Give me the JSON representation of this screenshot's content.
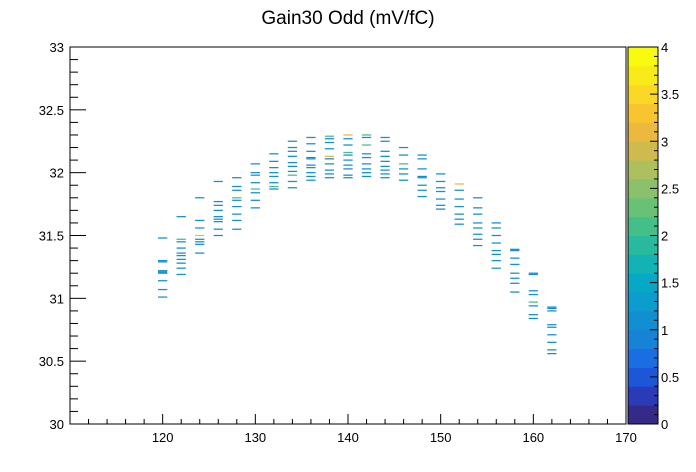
{
  "chart_data": {
    "type": "heatmap",
    "title": "Gain30 Odd (mV/fC)",
    "xlabel": "",
    "ylabel": "",
    "xlim": [
      110,
      170
    ],
    "ylim": [
      30,
      33
    ],
    "zlim": [
      0,
      4
    ],
    "x_ticks": [
      120,
      130,
      140,
      150,
      160,
      170
    ],
    "y_ticks": [
      30,
      30.5,
      31,
      31.5,
      32,
      32.5,
      33
    ],
    "z_ticks": [
      0,
      0.5,
      1,
      1.5,
      2,
      2.5,
      3,
      3.5,
      4
    ],
    "x_tick_labels": [
      "120",
      "130",
      "140",
      "150",
      "160",
      "170"
    ],
    "y_tick_labels": [
      "30",
      "30.5",
      "31",
      "31.5",
      "32",
      "32.5",
      "33"
    ],
    "z_tick_labels": [
      "0",
      "0.5",
      "1",
      "1.5",
      "2",
      "2.5",
      "3",
      "3.5",
      "4"
    ],
    "bin_width_x": 1,
    "bin_width_y": 0.01,
    "palette": [
      "#352a87",
      "#2a3bb8",
      "#1e56d8",
      "#1a6ee2",
      "#1783d6",
      "#128fd0",
      "#0b9dce",
      "#06a8c6",
      "#12b2b5",
      "#28b99f",
      "#44bf8a",
      "#67c275",
      "#8bc16a",
      "#aebf5d",
      "#cfba4d",
      "#eab93e",
      "#f8c530",
      "#fcd826",
      "#f9eb1a",
      "#f9fb0e"
    ],
    "cells": [
      [
        120,
        31.48,
        1
      ],
      [
        120,
        31.3,
        1
      ],
      [
        120,
        31.29,
        1
      ],
      [
        120,
        31.22,
        1
      ],
      [
        120,
        31.21,
        1
      ],
      [
        120,
        31.2,
        1
      ],
      [
        120,
        31.14,
        1
      ],
      [
        120,
        31.07,
        1
      ],
      [
        120,
        31.01,
        1
      ],
      [
        122,
        31.65,
        1
      ],
      [
        122,
        31.47,
        2
      ],
      [
        122,
        31.45,
        1
      ],
      [
        122,
        31.4,
        1
      ],
      [
        122,
        31.36,
        1
      ],
      [
        122,
        31.34,
        1
      ],
      [
        122,
        31.31,
        1
      ],
      [
        122,
        31.28,
        1
      ],
      [
        122,
        31.24,
        1
      ],
      [
        122,
        31.19,
        1
      ],
      [
        124,
        31.8,
        1
      ],
      [
        124,
        31.62,
        1
      ],
      [
        124,
        31.56,
        1
      ],
      [
        124,
        31.5,
        3
      ],
      [
        124,
        31.47,
        1
      ],
      [
        124,
        31.45,
        1
      ],
      [
        124,
        31.43,
        1
      ],
      [
        124,
        31.36,
        1
      ],
      [
        126,
        31.93,
        1
      ],
      [
        126,
        31.77,
        1
      ],
      [
        126,
        31.74,
        1
      ],
      [
        126,
        31.7,
        1
      ],
      [
        126,
        31.65,
        1
      ],
      [
        126,
        31.63,
        1
      ],
      [
        126,
        31.61,
        1
      ],
      [
        126,
        31.55,
        1
      ],
      [
        126,
        31.5,
        1
      ],
      [
        128,
        31.96,
        1
      ],
      [
        128,
        31.89,
        1
      ],
      [
        128,
        31.86,
        1
      ],
      [
        128,
        31.8,
        2
      ],
      [
        128,
        31.78,
        1
      ],
      [
        128,
        31.73,
        1
      ],
      [
        128,
        31.67,
        1
      ],
      [
        128,
        31.62,
        1
      ],
      [
        128,
        31.55,
        1
      ],
      [
        130,
        32.07,
        1
      ],
      [
        130,
        32.0,
        1
      ],
      [
        130,
        31.98,
        1
      ],
      [
        130,
        31.92,
        1
      ],
      [
        130,
        31.87,
        2
      ],
      [
        130,
        31.84,
        1
      ],
      [
        130,
        31.78,
        1
      ],
      [
        130,
        31.72,
        1
      ],
      [
        132,
        32.15,
        1
      ],
      [
        132,
        32.09,
        1
      ],
      [
        132,
        32.04,
        1
      ],
      [
        132,
        32.0,
        1
      ],
      [
        132,
        31.97,
        1
      ],
      [
        132,
        31.92,
        1
      ],
      [
        132,
        31.89,
        2
      ],
      [
        132,
        31.87,
        1
      ],
      [
        134,
        32.25,
        1
      ],
      [
        134,
        32.2,
        1
      ],
      [
        134,
        32.17,
        1
      ],
      [
        134,
        32.13,
        1
      ],
      [
        134,
        32.08,
        1
      ],
      [
        134,
        32.05,
        1
      ],
      [
        134,
        32.01,
        1
      ],
      [
        134,
        31.98,
        2
      ],
      [
        134,
        31.93,
        1
      ],
      [
        134,
        31.88,
        1
      ],
      [
        136,
        32.28,
        1
      ],
      [
        136,
        32.23,
        1
      ],
      [
        136,
        32.17,
        1
      ],
      [
        136,
        32.12,
        1
      ],
      [
        136,
        32.11,
        1
      ],
      [
        136,
        32.06,
        1
      ],
      [
        136,
        32.04,
        1
      ],
      [
        136,
        32.0,
        1
      ],
      [
        136,
        31.97,
        1
      ],
      [
        136,
        31.94,
        1
      ],
      [
        138,
        32.29,
        2
      ],
      [
        138,
        32.27,
        1
      ],
      [
        138,
        32.24,
        1
      ],
      [
        138,
        32.19,
        1
      ],
      [
        138,
        32.13,
        3
      ],
      [
        138,
        32.11,
        1
      ],
      [
        138,
        32.07,
        1
      ],
      [
        138,
        32.02,
        1
      ],
      [
        138,
        31.99,
        1
      ],
      [
        138,
        31.96,
        1
      ],
      [
        140,
        32.3,
        3
      ],
      [
        140,
        32.27,
        1
      ],
      [
        140,
        32.22,
        1
      ],
      [
        140,
        32.16,
        2
      ],
      [
        140,
        32.14,
        1
      ],
      [
        140,
        32.1,
        1
      ],
      [
        140,
        32.06,
        1
      ],
      [
        140,
        32.03,
        1
      ],
      [
        140,
        31.98,
        1
      ],
      [
        140,
        31.96,
        1
      ],
      [
        142,
        32.3,
        2
      ],
      [
        142,
        32.28,
        1
      ],
      [
        142,
        32.22,
        2
      ],
      [
        142,
        32.15,
        1
      ],
      [
        142,
        32.12,
        1
      ],
      [
        142,
        32.07,
        1
      ],
      [
        142,
        32.03,
        1
      ],
      [
        142,
        32.0,
        1
      ],
      [
        142,
        31.97,
        1
      ],
      [
        144,
        32.28,
        1
      ],
      [
        144,
        32.25,
        1
      ],
      [
        144,
        32.17,
        1
      ],
      [
        144,
        32.13,
        1
      ],
      [
        144,
        32.09,
        1
      ],
      [
        144,
        32.05,
        1
      ],
      [
        144,
        32.02,
        1
      ],
      [
        144,
        31.99,
        1
      ],
      [
        144,
        31.96,
        1
      ],
      [
        146,
        32.2,
        1
      ],
      [
        146,
        32.14,
        1
      ],
      [
        146,
        32.07,
        2
      ],
      [
        146,
        32.03,
        1
      ],
      [
        146,
        31.99,
        1
      ],
      [
        146,
        31.94,
        1
      ],
      [
        148,
        32.14,
        1
      ],
      [
        148,
        32.11,
        1
      ],
      [
        148,
        32.03,
        1
      ],
      [
        148,
        31.97,
        1
      ],
      [
        148,
        31.96,
        1
      ],
      [
        148,
        31.9,
        1
      ],
      [
        148,
        31.86,
        1
      ],
      [
        148,
        31.81,
        1
      ],
      [
        150,
        31.99,
        1
      ],
      [
        150,
        31.93,
        1
      ],
      [
        150,
        31.88,
        1
      ],
      [
        150,
        31.85,
        1
      ],
      [
        150,
        31.79,
        1
      ],
      [
        150,
        31.74,
        1
      ],
      [
        150,
        31.71,
        1
      ],
      [
        152,
        31.91,
        3
      ],
      [
        152,
        31.86,
        1
      ],
      [
        152,
        31.79,
        1
      ],
      [
        152,
        31.73,
        1
      ],
      [
        152,
        31.67,
        1
      ],
      [
        152,
        31.63,
        1
      ],
      [
        152,
        31.59,
        1
      ],
      [
        154,
        31.8,
        1
      ],
      [
        154,
        31.72,
        1
      ],
      [
        154,
        31.67,
        1
      ],
      [
        154,
        31.6,
        1
      ],
      [
        154,
        31.56,
        1
      ],
      [
        154,
        31.51,
        1
      ],
      [
        154,
        31.47,
        1
      ],
      [
        154,
        31.42,
        1
      ],
      [
        156,
        31.6,
        1
      ],
      [
        156,
        31.56,
        1
      ],
      [
        156,
        31.5,
        1
      ],
      [
        156,
        31.44,
        1
      ],
      [
        156,
        31.38,
        1
      ],
      [
        156,
        31.35,
        1
      ],
      [
        156,
        31.3,
        1
      ],
      [
        156,
        31.24,
        1
      ],
      [
        158,
        31.39,
        1
      ],
      [
        158,
        31.38,
        1
      ],
      [
        158,
        31.32,
        1
      ],
      [
        158,
        31.27,
        1
      ],
      [
        158,
        31.2,
        1
      ],
      [
        158,
        31.16,
        1
      ],
      [
        158,
        31.12,
        1
      ],
      [
        158,
        31.05,
        1
      ],
      [
        160,
        31.2,
        1
      ],
      [
        160,
        31.19,
        1
      ],
      [
        160,
        31.06,
        1
      ],
      [
        160,
        31.03,
        1
      ],
      [
        160,
        30.97,
        2
      ],
      [
        160,
        30.94,
        1
      ],
      [
        160,
        30.87,
        1
      ],
      [
        160,
        30.84,
        1
      ],
      [
        162,
        30.93,
        1
      ],
      [
        162,
        30.92,
        1
      ],
      [
        162,
        30.9,
        1
      ],
      [
        162,
        30.79,
        1
      ],
      [
        162,
        30.77,
        1
      ],
      [
        162,
        30.71,
        1
      ],
      [
        162,
        30.65,
        1
      ],
      [
        162,
        30.59,
        1
      ],
      [
        162,
        30.56,
        1
      ]
    ]
  }
}
